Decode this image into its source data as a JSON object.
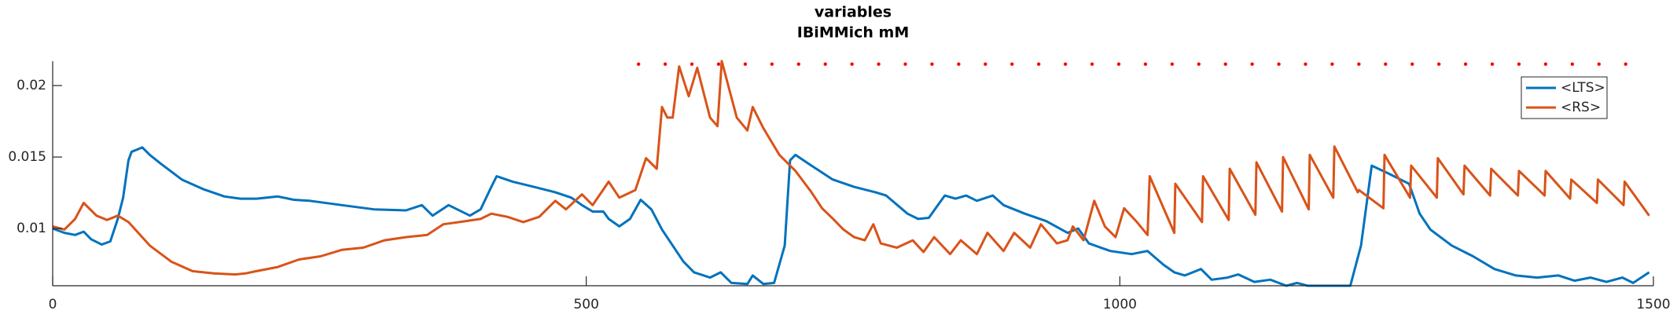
{
  "chart_data": {
    "type": "line",
    "title": "variables",
    "subtitle": "IBiMMich mM",
    "xlim": [
      0,
      1500
    ],
    "xticks": [
      0,
      500,
      1000,
      1500
    ],
    "ylim": [
      0.006,
      0.0217
    ],
    "yticks": [
      0.01,
      0.015,
      0.02
    ],
    "legend": "top-right",
    "series": [
      {
        "name": "<LTS>",
        "color": "#0072bd",
        "x": [
          0,
          11,
          21,
          29,
          36,
          46,
          54,
          61,
          66,
          71,
          74,
          79,
          84,
          91,
          101,
          121,
          141,
          161,
          176,
          191,
          211,
          226,
          241,
          271,
          301,
          331,
          346,
          356,
          371,
          391,
          401,
          411,
          416,
          431,
          451,
          471,
          486,
          496,
          506,
          516,
          521,
          531,
          541,
          551,
          561,
          571,
          581,
          591,
          601,
          616,
          626,
          636,
          651,
          656,
          666,
          676,
          686,
          691,
          696,
          711,
          731,
          751,
          771,
          781,
          801,
          811,
          821,
          831,
          836,
          846,
          856,
          866,
          881,
          891,
          911,
          931,
          951,
          961,
          971,
          991,
          1011,
          1026,
          1041,
          1051,
          1061,
          1076,
          1086,
          1101,
          1111,
          1126,
          1141,
          1156,
          1166,
          1176,
          1201,
          1216,
          1226,
          1236,
          1251,
          1271,
          1281,
          1291,
          1311,
          1331,
          1351,
          1371,
          1391,
          1411,
          1426,
          1441,
          1456,
          1471,
          1481,
          1496
        ],
        "values": [
          0.01,
          0.0097,
          0.00955,
          0.00978,
          0.00925,
          0.00888,
          0.0091,
          0.01067,
          0.01216,
          0.01477,
          0.01537,
          0.01552,
          0.01567,
          0.01515,
          0.01455,
          0.01343,
          0.01276,
          0.01224,
          0.01209,
          0.01209,
          0.01224,
          0.01201,
          0.01194,
          0.01164,
          0.01134,
          0.01127,
          0.01164,
          0.0109,
          0.01164,
          0.0109,
          0.01134,
          0.01291,
          0.01366,
          0.01328,
          0.01291,
          0.01254,
          0.01216,
          0.01164,
          0.01119,
          0.01119,
          0.01067,
          0.01015,
          0.01067,
          0.01201,
          0.01134,
          0.00993,
          0.00881,
          0.00769,
          0.00694,
          0.00657,
          0.00694,
          0.0062,
          0.00612,
          0.00672,
          0.00612,
          0.0062,
          0.00881,
          0.01477,
          0.01515,
          0.0144,
          0.01343,
          0.01291,
          0.01254,
          0.01231,
          0.01104,
          0.01067,
          0.01075,
          0.01179,
          0.01231,
          0.01209,
          0.01231,
          0.01194,
          0.01231,
          0.01164,
          0.01104,
          0.01052,
          0.0097,
          0.01,
          0.00896,
          0.00843,
          0.00821,
          0.00843,
          0.00746,
          0.00694,
          0.00672,
          0.00717,
          0.00642,
          0.00657,
          0.00679,
          0.00627,
          0.00642,
          0.006,
          0.0062,
          0.006,
          0.006,
          0.006,
          0.00881,
          0.0144,
          0.01388,
          0.01313,
          0.01104,
          0.00993,
          0.00881,
          0.00806,
          0.00717,
          0.00672,
          0.00657,
          0.00672,
          0.00635,
          0.00657,
          0.00627,
          0.00657,
          0.0062,
          0.00694
        ]
      },
      {
        "name": "<RS>",
        "color": "#d95319",
        "x": [
          0,
          11,
          21,
          29,
          41,
          51,
          61,
          71,
          91,
          111,
          131,
          151,
          171,
          181,
          191,
          211,
          231,
          251,
          271,
          291,
          311,
          331,
          351,
          366,
          381,
          401,
          411,
          426,
          441,
          456,
          471,
          481,
          496,
          506,
          521,
          531,
          546,
          556,
          566,
          571,
          576,
          581,
          587,
          596,
          604,
          616,
          623,
          627,
          641,
          651,
          656,
          666,
          681,
          696,
          711,
          721,
          731,
          741,
          751,
          761,
          769,
          776,
          791,
          806,
          816,
          826,
          841,
          851,
          866,
          876,
          891,
          901,
          916,
          926,
          941,
          951,
          956,
          966,
          976,
          986,
          996,
          1004,
          1016,
          1026,
          1028,
          1051,
          1052,
          1077,
          1078,
          1102,
          1103,
          1127,
          1128,
          1152,
          1153,
          1177,
          1178,
          1200,
          1201,
          1223,
          1224,
          1247,
          1248,
          1272,
          1273,
          1297,
          1298,
          1322,
          1323,
          1347,
          1348,
          1373,
          1374,
          1398,
          1399,
          1422,
          1423,
          1447,
          1448,
          1472,
          1473,
          1496
        ],
        "values": [
          0.01015,
          0.00993,
          0.01067,
          0.01179,
          0.0109,
          0.0106,
          0.0109,
          0.01045,
          0.00881,
          0.00769,
          0.00702,
          0.00687,
          0.00679,
          0.00687,
          0.00702,
          0.00731,
          0.00784,
          0.00806,
          0.00851,
          0.00866,
          0.00918,
          0.0094,
          0.00955,
          0.0103,
          0.01045,
          0.01067,
          0.01104,
          0.01082,
          0.01045,
          0.01082,
          0.01194,
          0.01134,
          0.01239,
          0.01164,
          0.01328,
          0.01216,
          0.01269,
          0.01492,
          0.01418,
          0.0185,
          0.01776,
          0.01776,
          0.02134,
          0.01925,
          0.02124,
          0.01776,
          0.01716,
          0.02171,
          0.01776,
          0.01686,
          0.0185,
          0.01701,
          0.01515,
          0.01403,
          0.01254,
          0.01142,
          0.0107,
          0.00993,
          0.0094,
          0.00918,
          0.0103,
          0.00896,
          0.00866,
          0.00918,
          0.00836,
          0.0094,
          0.00821,
          0.00918,
          0.00821,
          0.0097,
          0.00843,
          0.0097,
          0.00866,
          0.0103,
          0.00896,
          0.00918,
          0.01015,
          0.00918,
          0.01194,
          0.01015,
          0.0094,
          0.01142,
          0.01045,
          0.00955,
          0.01366,
          0.0097,
          0.01313,
          0.01045,
          0.01366,
          0.0106,
          0.01418,
          0.01097,
          0.01463,
          0.01119,
          0.015,
          0.01134,
          0.01515,
          0.01216,
          0.01574,
          0.01254,
          0.01269,
          0.01142,
          0.01515,
          0.01216,
          0.0144,
          0.01216,
          0.01492,
          0.01239,
          0.0144,
          0.01231,
          0.01418,
          0.01231,
          0.01403,
          0.01231,
          0.01403,
          0.01209,
          0.01343,
          0.01179,
          0.01343,
          0.01164,
          0.01328,
          0.0109
        ]
      }
    ],
    "markers": {
      "color": "#ff0000",
      "y": 0.0215,
      "x": [
        549,
        574,
        599,
        624,
        649,
        674,
        699,
        724,
        749,
        774,
        799,
        824,
        849,
        874,
        899,
        924,
        949,
        974,
        999,
        1024,
        1049,
        1074,
        1099,
        1124,
        1149,
        1174,
        1199,
        1224,
        1249,
        1274,
        1299,
        1324,
        1349,
        1374,
        1399,
        1424,
        1449,
        1474
      ]
    }
  }
}
